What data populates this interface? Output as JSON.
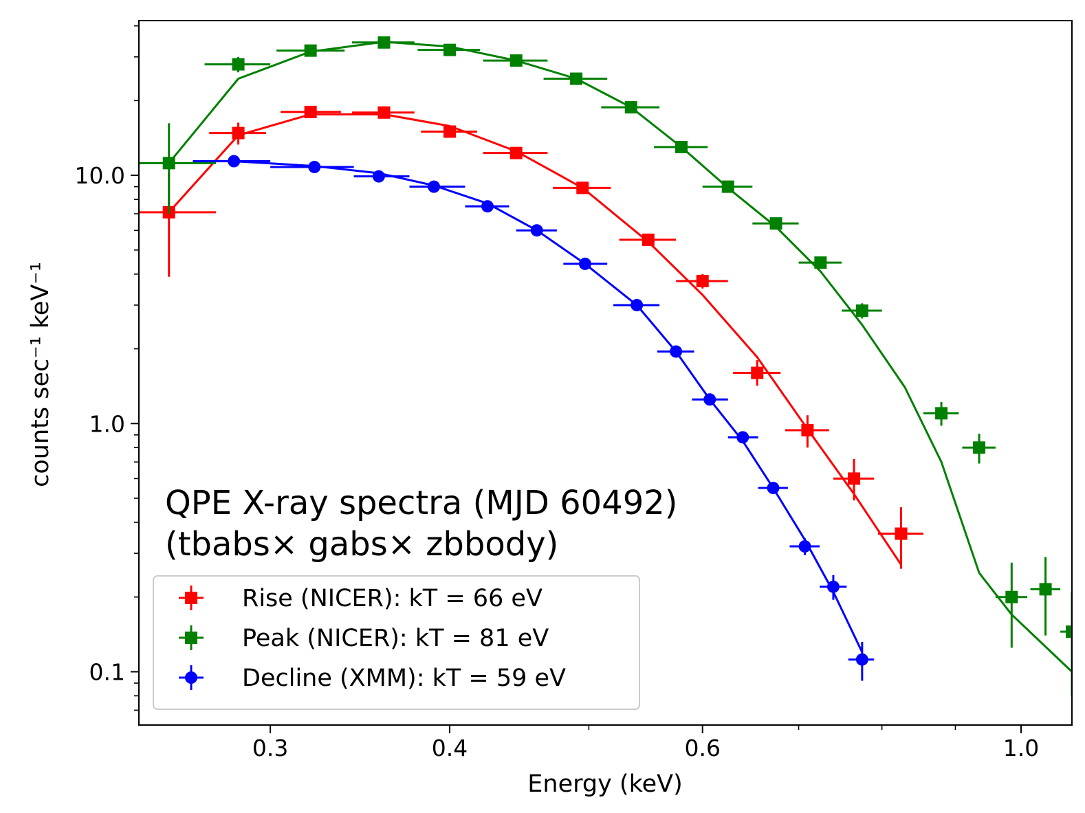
{
  "chart_data": {
    "type": "scatter",
    "xlabel": "Energy (keV)",
    "ylabel": "counts sec⁻¹ keV⁻¹",
    "x_scale": "log",
    "y_scale": "log",
    "xlim": [
      0.243,
      1.085
    ],
    "ylim": [
      0.061,
      42
    ],
    "x_ticks": [
      {
        "value": 0.3,
        "label": "0.3"
      },
      {
        "value": 0.4,
        "label": "0.4"
      },
      {
        "value": 0.6,
        "label": "0.6"
      },
      {
        "value": 1.0,
        "label": "1.0"
      }
    ],
    "x_minor_ticks": [
      0.5,
      0.7,
      0.8,
      0.9
    ],
    "y_ticks": [
      {
        "value": 0.1,
        "label": "0.1"
      },
      {
        "value": 1.0,
        "label": "1.0"
      },
      {
        "value": 10.0,
        "label": "10.0"
      }
    ],
    "annotations": [
      "QPE X-ray spectra (MJD 60492)",
      "(tbabs× gabs× zbbody)"
    ],
    "legend_position": "lower-left",
    "series": [
      {
        "name": "Rise (NICER): kT = 66 eV",
        "color": "#ff0000",
        "marker": "square",
        "points": [
          {
            "x": 0.255,
            "y": 7.1,
            "xlo": 0.235,
            "xhi": 0.275,
            "ylo": 3.9,
            "yhi": 10.2
          },
          {
            "x": 0.285,
            "y": 14.8,
            "xlo": 0.272,
            "xhi": 0.298,
            "ylo": 13.3,
            "yhi": 16.3
          },
          {
            "x": 0.32,
            "y": 18.0,
            "xlo": 0.305,
            "xhi": 0.336,
            "ylo": 17.1,
            "yhi": 18.9
          },
          {
            "x": 0.36,
            "y": 17.9,
            "xlo": 0.342,
            "xhi": 0.378,
            "ylo": 17.1,
            "yhi": 18.7
          },
          {
            "x": 0.4,
            "y": 15.0,
            "xlo": 0.382,
            "xhi": 0.418,
            "ylo": 14.3,
            "yhi": 15.7
          },
          {
            "x": 0.445,
            "y": 12.3,
            "xlo": 0.422,
            "xhi": 0.468,
            "ylo": 11.8,
            "yhi": 12.8
          },
          {
            "x": 0.495,
            "y": 8.9,
            "xlo": 0.472,
            "xhi": 0.518,
            "ylo": 8.5,
            "yhi": 9.3
          },
          {
            "x": 0.55,
            "y": 5.5,
            "xlo": 0.525,
            "xhi": 0.575,
            "ylo": 5.3,
            "yhi": 5.7
          },
          {
            "x": 0.6,
            "y": 3.75,
            "xlo": 0.575,
            "xhi": 0.625,
            "ylo": 3.5,
            "yhi": 4.0
          },
          {
            "x": 0.655,
            "y": 1.6,
            "xlo": 0.63,
            "xhi": 0.68,
            "ylo": 1.42,
            "yhi": 1.8
          },
          {
            "x": 0.71,
            "y": 0.94,
            "xlo": 0.685,
            "xhi": 0.735,
            "ylo": 0.8,
            "yhi": 1.08
          },
          {
            "x": 0.765,
            "y": 0.6,
            "xlo": 0.74,
            "xhi": 0.79,
            "ylo": 0.49,
            "yhi": 0.72
          },
          {
            "x": 0.825,
            "y": 0.36,
            "xlo": 0.795,
            "xhi": 0.855,
            "ylo": 0.26,
            "yhi": 0.46
          }
        ],
        "model": [
          {
            "x": 0.255,
            "y": 7.1
          },
          {
            "x": 0.285,
            "y": 14.5
          },
          {
            "x": 0.32,
            "y": 17.6
          },
          {
            "x": 0.36,
            "y": 17.6
          },
          {
            "x": 0.4,
            "y": 15.8
          },
          {
            "x": 0.445,
            "y": 12.5
          },
          {
            "x": 0.495,
            "y": 8.9
          },
          {
            "x": 0.55,
            "y": 5.4
          },
          {
            "x": 0.6,
            "y": 3.3
          },
          {
            "x": 0.655,
            "y": 1.85
          },
          {
            "x": 0.71,
            "y": 0.95
          },
          {
            "x": 0.765,
            "y": 0.52
          },
          {
            "x": 0.825,
            "y": 0.27
          }
        ]
      },
      {
        "name": "Peak (NICER): kT = 81 eV",
        "color": "#008000",
        "marker": "square",
        "points": [
          {
            "x": 0.255,
            "y": 11.2,
            "xlo": 0.235,
            "xhi": 0.275,
            "ylo": 7.0,
            "yhi": 16.2
          },
          {
            "x": 0.285,
            "y": 28.0,
            "xlo": 0.27,
            "xhi": 0.3,
            "ylo": 26.0,
            "yhi": 30.0
          },
          {
            "x": 0.32,
            "y": 31.8,
            "xlo": 0.303,
            "xhi": 0.338,
            "ylo": 30.7,
            "yhi": 32.9
          },
          {
            "x": 0.36,
            "y": 34.3,
            "xlo": 0.342,
            "xhi": 0.378,
            "ylo": 33.3,
            "yhi": 35.3
          },
          {
            "x": 0.4,
            "y": 32.0,
            "xlo": 0.38,
            "xhi": 0.42,
            "ylo": 31.0,
            "yhi": 33.0
          },
          {
            "x": 0.445,
            "y": 29.0,
            "xlo": 0.422,
            "xhi": 0.468,
            "ylo": 28.1,
            "yhi": 29.9
          },
          {
            "x": 0.49,
            "y": 24.5,
            "xlo": 0.465,
            "xhi": 0.515,
            "ylo": 23.8,
            "yhi": 25.2
          },
          {
            "x": 0.535,
            "y": 18.8,
            "xlo": 0.51,
            "xhi": 0.56,
            "ylo": 18.3,
            "yhi": 19.3
          },
          {
            "x": 0.58,
            "y": 13.0,
            "xlo": 0.555,
            "xhi": 0.605,
            "ylo": 12.6,
            "yhi": 13.4
          },
          {
            "x": 0.625,
            "y": 9.0,
            "xlo": 0.6,
            "xhi": 0.65,
            "ylo": 8.6,
            "yhi": 9.4
          },
          {
            "x": 0.675,
            "y": 6.4,
            "xlo": 0.65,
            "xhi": 0.7,
            "ylo": 6.1,
            "yhi": 6.7
          },
          {
            "x": 0.725,
            "y": 4.45,
            "xlo": 0.7,
            "xhi": 0.75,
            "ylo": 4.2,
            "yhi": 4.7
          },
          {
            "x": 0.775,
            "y": 2.85,
            "xlo": 0.75,
            "xhi": 0.8,
            "ylo": 2.65,
            "yhi": 3.05
          },
          {
            "x": 0.88,
            "y": 1.1,
            "xlo": 0.855,
            "xhi": 0.905,
            "ylo": 0.98,
            "yhi": 1.22
          },
          {
            "x": 0.935,
            "y": 0.8,
            "xlo": 0.91,
            "xhi": 0.96,
            "ylo": 0.69,
            "yhi": 0.91
          },
          {
            "x": 0.985,
            "y": 0.2,
            "xlo": 0.96,
            "xhi": 1.01,
            "ylo": 0.125,
            "yhi": 0.275
          },
          {
            "x": 1.04,
            "y": 0.215,
            "xlo": 1.015,
            "xhi": 1.065,
            "ylo": 0.14,
            "yhi": 0.29
          },
          {
            "x": 1.085,
            "y": 0.145,
            "xlo": 1.065,
            "xhi": 1.105,
            "ylo": 0.08,
            "yhi": 0.21
          }
        ],
        "model": [
          {
            "x": 0.255,
            "y": 11.2
          },
          {
            "x": 0.285,
            "y": 24.5
          },
          {
            "x": 0.32,
            "y": 31.5
          },
          {
            "x": 0.36,
            "y": 34.5
          },
          {
            "x": 0.4,
            "y": 33.0
          },
          {
            "x": 0.445,
            "y": 29.0
          },
          {
            "x": 0.49,
            "y": 24.5
          },
          {
            "x": 0.535,
            "y": 18.8
          },
          {
            "x": 0.58,
            "y": 13.0
          },
          {
            "x": 0.625,
            "y": 8.9
          },
          {
            "x": 0.675,
            "y": 6.2
          },
          {
            "x": 0.725,
            "y": 4.1
          },
          {
            "x": 0.775,
            "y": 2.5
          },
          {
            "x": 0.83,
            "y": 1.4
          },
          {
            "x": 0.88,
            "y": 0.7
          },
          {
            "x": 0.935,
            "y": 0.25
          },
          {
            "x": 0.985,
            "y": 0.17
          },
          {
            "x": 1.085,
            "y": 0.1
          }
        ]
      },
      {
        "name": "Decline (XMM): kT = 59 eV",
        "color": "#0000ff",
        "marker": "circle",
        "points": [
          {
            "x": 0.283,
            "y": 11.4,
            "xlo": 0.265,
            "xhi": 0.3,
            "ylo": 11.2,
            "yhi": 11.6
          },
          {
            "x": 0.322,
            "y": 10.8,
            "xlo": 0.3,
            "xhi": 0.343,
            "ylo": 10.6,
            "yhi": 11.0
          },
          {
            "x": 0.357,
            "y": 9.9,
            "xlo": 0.343,
            "xhi": 0.375,
            "ylo": 9.7,
            "yhi": 10.1
          },
          {
            "x": 0.39,
            "y": 9.0,
            "xlo": 0.375,
            "xhi": 0.41,
            "ylo": 8.8,
            "yhi": 9.2
          },
          {
            "x": 0.425,
            "y": 7.5,
            "xlo": 0.41,
            "xhi": 0.44,
            "ylo": 7.35,
            "yhi": 7.65
          },
          {
            "x": 0.46,
            "y": 6.0,
            "xlo": 0.445,
            "xhi": 0.475,
            "ylo": 5.85,
            "yhi": 6.15
          },
          {
            "x": 0.497,
            "y": 4.4,
            "xlo": 0.48,
            "xhi": 0.515,
            "ylo": 4.3,
            "yhi": 4.5
          },
          {
            "x": 0.54,
            "y": 3.0,
            "xlo": 0.52,
            "xhi": 0.56,
            "ylo": 2.93,
            "yhi": 3.07
          },
          {
            "x": 0.575,
            "y": 1.95,
            "xlo": 0.558,
            "xhi": 0.592,
            "ylo": 1.9,
            "yhi": 2.0
          },
          {
            "x": 0.607,
            "y": 1.25,
            "xlo": 0.59,
            "xhi": 0.625,
            "ylo": 1.21,
            "yhi": 1.29
          },
          {
            "x": 0.64,
            "y": 0.88,
            "xlo": 0.625,
            "xhi": 0.656,
            "ylo": 0.85,
            "yhi": 0.91
          },
          {
            "x": 0.672,
            "y": 0.55,
            "xlo": 0.656,
            "xhi": 0.688,
            "ylo": 0.52,
            "yhi": 0.58
          },
          {
            "x": 0.707,
            "y": 0.32,
            "xlo": 0.69,
            "xhi": 0.724,
            "ylo": 0.295,
            "yhi": 0.345
          },
          {
            "x": 0.74,
            "y": 0.22,
            "xlo": 0.724,
            "xhi": 0.756,
            "ylo": 0.195,
            "yhi": 0.245
          },
          {
            "x": 0.775,
            "y": 0.112,
            "xlo": 0.758,
            "xhi": 0.79,
            "ylo": 0.092,
            "yhi": 0.132
          }
        ],
        "model": [
          {
            "x": 0.265,
            "y": 11.4
          },
          {
            "x": 0.283,
            "y": 11.4
          },
          {
            "x": 0.322,
            "y": 10.9
          },
          {
            "x": 0.357,
            "y": 10.2
          },
          {
            "x": 0.39,
            "y": 9.1
          },
          {
            "x": 0.425,
            "y": 7.7
          },
          {
            "x": 0.46,
            "y": 6.0
          },
          {
            "x": 0.497,
            "y": 4.4
          },
          {
            "x": 0.54,
            "y": 3.0
          },
          {
            "x": 0.575,
            "y": 1.95
          },
          {
            "x": 0.607,
            "y": 1.25
          },
          {
            "x": 0.64,
            "y": 0.85
          },
          {
            "x": 0.672,
            "y": 0.55
          },
          {
            "x": 0.707,
            "y": 0.34
          },
          {
            "x": 0.74,
            "y": 0.21
          },
          {
            "x": 0.775,
            "y": 0.12
          }
        ]
      }
    ]
  }
}
